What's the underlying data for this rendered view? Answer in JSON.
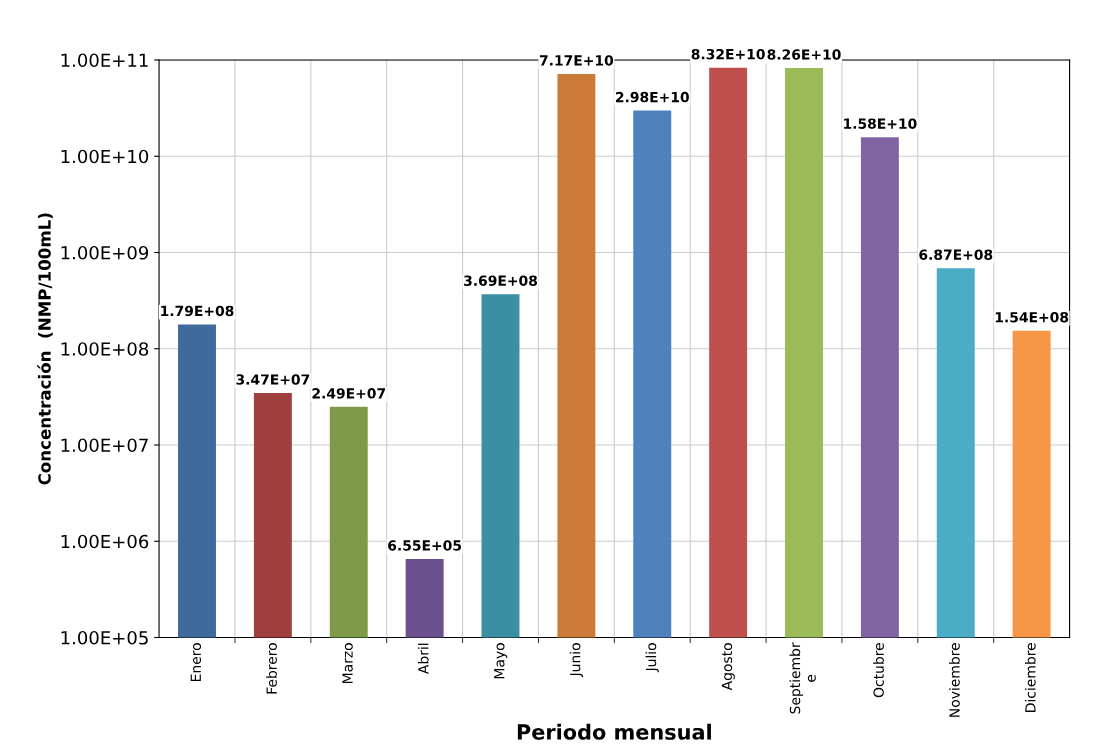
{
  "chart_data": {
    "type": "bar",
    "xlabel": "Periodo mensual",
    "ylabel": "Concentración  (NMP/100mL)",
    "categories": [
      "Enero",
      "Febrero",
      "Marzo",
      "Abril",
      "Mayo",
      "Junio",
      "Julio",
      "Agosto",
      "Septiembre",
      "Octubre",
      "Noviembre",
      "Diciembre"
    ],
    "values": [
      179000000,
      34700000,
      24900000,
      655000,
      369000000,
      71700000000,
      29800000000,
      83200000000,
      82600000000,
      15800000000,
      687000000,
      154000000
    ],
    "value_labels": [
      "1.79E+08",
      "3.47E+07",
      "2.49E+07",
      "6.55E+05",
      "3.69E+08",
      "7.17E+10",
      "2.98E+10",
      "8.32E+10",
      "8.26E+10",
      "1.58E+10",
      "6.87E+08",
      "1.54E+08"
    ],
    "colors": [
      "#3f6a9c",
      "#a0403e",
      "#7f9a48",
      "#6a508c",
      "#3b8fa3",
      "#cd7b38",
      "#4f81bd",
      "#c0504d",
      "#9bbb59",
      "#8064a2",
      "#4bacc6",
      "#f79646"
    ],
    "log": true,
    "ylim": [
      100000,
      100000000000
    ],
    "yticks": [
      {
        "value": 100000,
        "label": "1.00E+05"
      },
      {
        "value": 1000000,
        "label": "1.00E+06"
      },
      {
        "value": 10000000,
        "label": "1.00E+07"
      },
      {
        "value": 100000000,
        "label": "1.00E+08"
      },
      {
        "value": 1000000000,
        "label": "1.00E+09"
      },
      {
        "value": 10000000000,
        "label": "1.00E+10"
      },
      {
        "value": 100000000000,
        "label": "1.00E+11"
      }
    ],
    "grid": true
  }
}
